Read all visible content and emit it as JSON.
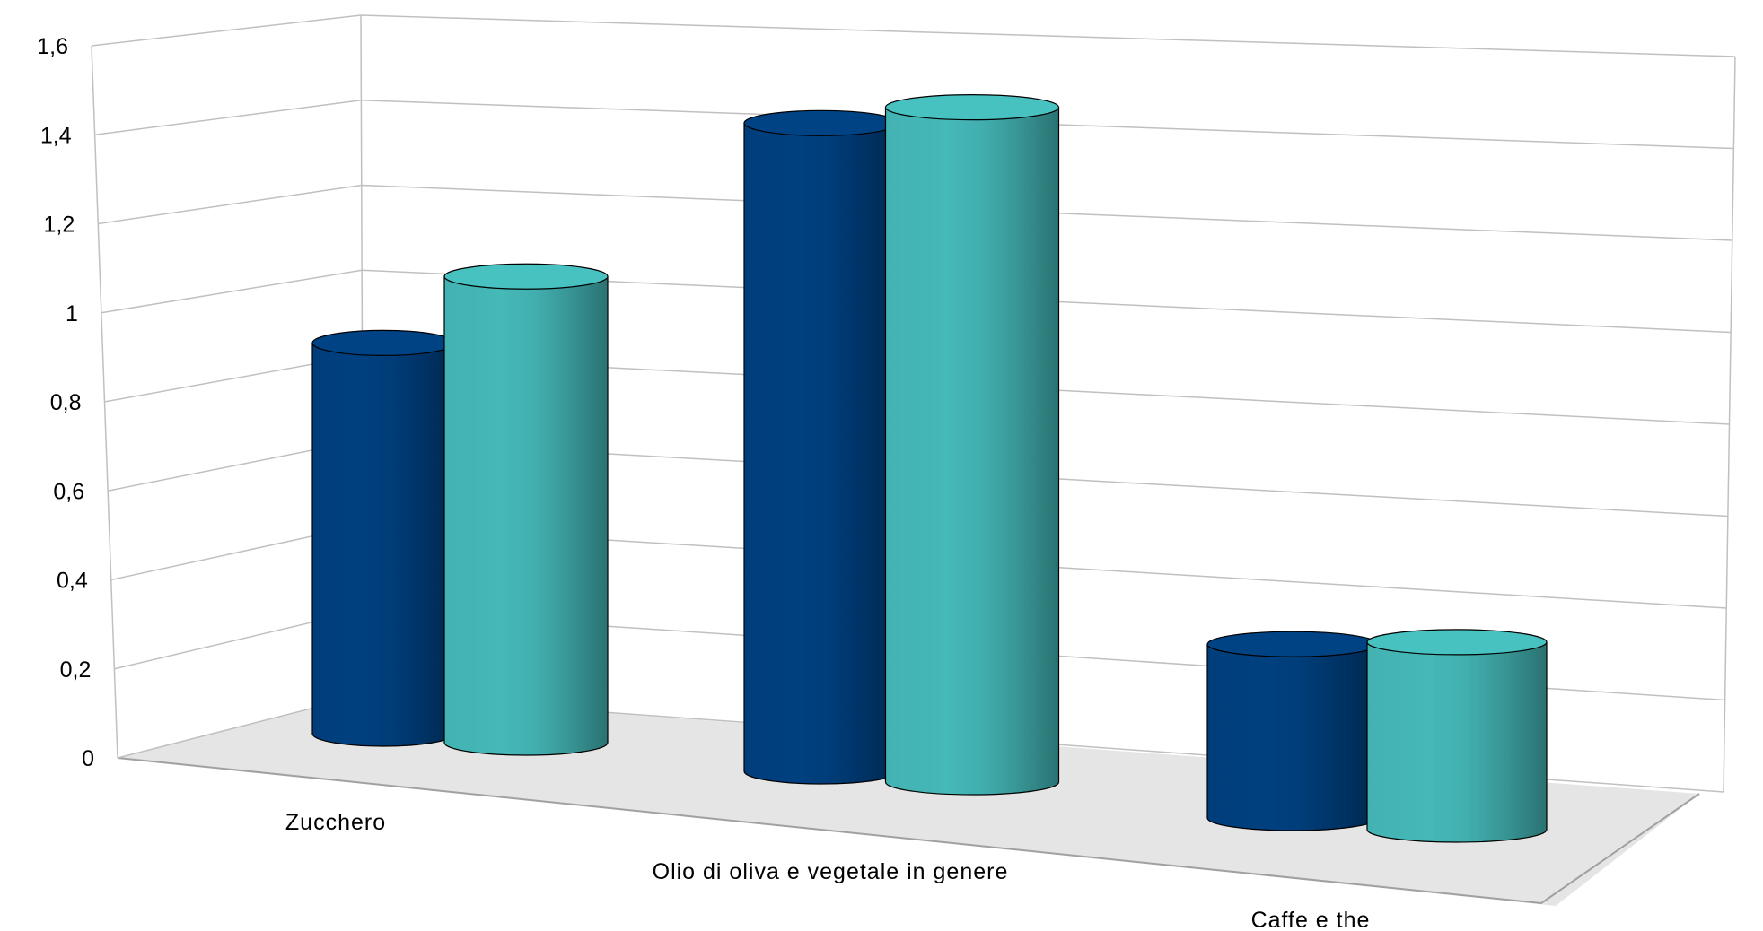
{
  "chart_data": {
    "type": "bar",
    "style": "3d-cylinder",
    "categories": [
      "Zucchero",
      "Olio di oliva e vegetale in genere",
      "Caffe e the"
    ],
    "series": [
      {
        "values": [
          0.88,
          1.46,
          0.38
        ],
        "color": "#00407F"
      },
      {
        "values": [
          1.05,
          1.52,
          0.41
        ],
        "color": "#45B8B8"
      }
    ],
    "ylim": [
      0,
      1.6
    ],
    "y_ticks": [
      "0",
      "0,2",
      "0,4",
      "0,6",
      "0,8",
      "1",
      "1,2",
      "1,4",
      "1,6"
    ],
    "grid": true,
    "legend": "none",
    "colors": {
      "floor": "#E5E5E5",
      "grid": "#C0C0C0",
      "outline": "#000000"
    }
  }
}
